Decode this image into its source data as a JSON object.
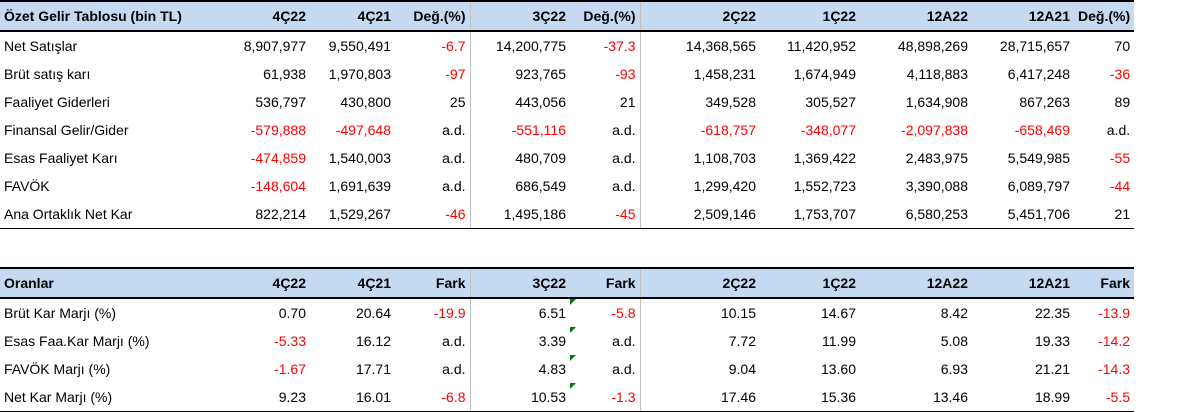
{
  "income": {
    "header": [
      "Özet Gelir Tablosu (bin TL)",
      "4Ç22",
      "4Ç21",
      "Değ.(%)",
      "3Ç22",
      "Değ.(%)",
      "2Ç22",
      "1Ç22",
      "12A22",
      "12A21",
      "Değ.(%)"
    ],
    "rows": [
      [
        "Net Satışlar",
        "8,907,977",
        "9,550,491",
        "-6.7",
        "14,200,775",
        "-37.3",
        "14,368,565",
        "11,420,952",
        "48,898,269",
        "28,715,657",
        "70"
      ],
      [
        "Brüt satış karı",
        "61,938",
        "1,970,803",
        "-97",
        "923,765",
        "-93",
        "1,458,231",
        "1,674,949",
        "4,118,883",
        "6,417,248",
        "-36"
      ],
      [
        "Faaliyet Giderleri",
        "536,797",
        "430,800",
        "25",
        "443,056",
        "21",
        "349,528",
        "305,527",
        "1,634,908",
        "867,263",
        "89"
      ],
      [
        "Finansal Gelir/Gider",
        "-579,888",
        "-497,648",
        "a.d.",
        "-551,116",
        "a.d.",
        "-618,757",
        "-348,077",
        "-2,097,838",
        "-658,469",
        "a.d."
      ],
      [
        "Esas Faaliyet Karı",
        "-474,859",
        "1,540,003",
        "a.d.",
        "480,709",
        "a.d.",
        "1,108,703",
        "1,369,422",
        "2,483,975",
        "5,549,985",
        "-55"
      ],
      [
        "FAVÖK",
        "-148,604",
        "1,691,639",
        "a.d.",
        "686,549",
        "a.d.",
        "1,299,420",
        "1,552,723",
        "3,390,088",
        "6,089,797",
        "-44"
      ],
      [
        "Ana Ortaklık Net Kar",
        "822,214",
        "1,529,267",
        "-46",
        "1,495,186",
        "-45",
        "2,509,146",
        "1,753,707",
        "6,580,253",
        "5,451,706",
        "21"
      ]
    ]
  },
  "ratios": {
    "header": [
      "Oranlar",
      "4Ç22",
      "4Ç21",
      "Fark",
      "3Ç22",
      "Fark",
      "2Ç22",
      "1Ç22",
      "12A22",
      "12A21",
      "Fark"
    ],
    "rows": [
      [
        "Brüt Kar Marjı (%)",
        "0.70",
        "20.64",
        "-19.9",
        "6.51",
        "-5.8",
        "10.15",
        "14.67",
        "8.42",
        "22.35",
        "-13.9"
      ],
      [
        "Esas Faa.Kar Marjı (%)",
        "-5.33",
        "16.12",
        "a.d.",
        "3.39",
        "a.d.",
        "7.72",
        "11.99",
        "5.08",
        "19.33",
        "-14.2"
      ],
      [
        "FAVÖK Marjı (%)",
        "-1.67",
        "17.71",
        "a.d.",
        "4.83",
        "a.d.",
        "9.04",
        "13.60",
        "6.93",
        "21.21",
        "-14.3"
      ],
      [
        "Net Kar Marjı (%)",
        "9.23",
        "16.01",
        "-6.8",
        "10.53",
        "-1.3",
        "17.46",
        "15.36",
        "13.46",
        "18.99",
        "-5.5"
      ]
    ]
  },
  "colors": {
    "header_bg": "#c5d9f1",
    "negative": "#ff0000",
    "comment_marker": "#008000"
  }
}
